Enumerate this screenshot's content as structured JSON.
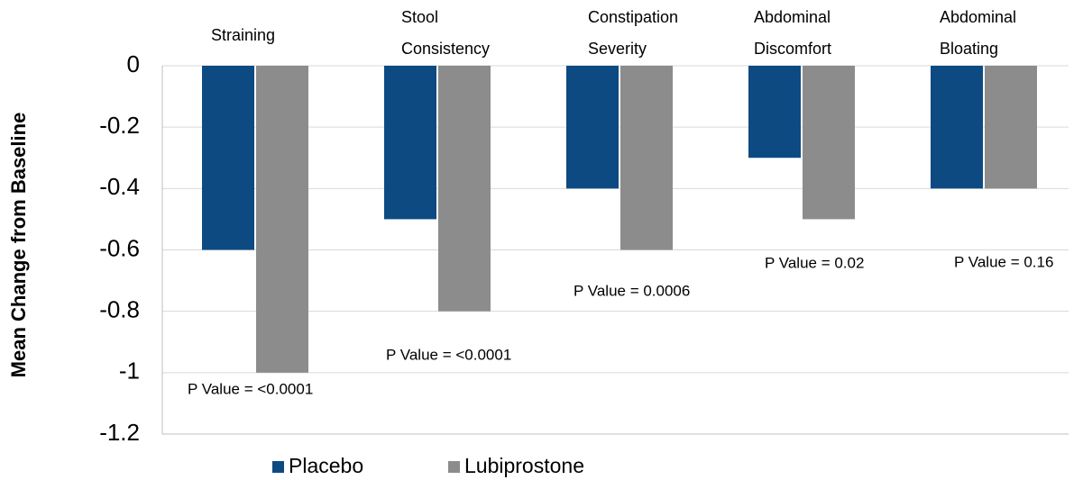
{
  "chart_data": {
    "type": "bar",
    "y_label": "Mean Change from Baseline",
    "categories": [
      [
        "Straining"
      ],
      [
        "Stool",
        "Consistency"
      ],
      [
        "Constipation",
        "Severity"
      ],
      [
        "Abdominal",
        "Discomfort"
      ],
      [
        "Abdominal",
        "Bloating"
      ]
    ],
    "series": [
      {
        "name": "Placebo",
        "color": "#0d4a82",
        "values": [
          -0.6,
          -0.5,
          -0.4,
          -0.3,
          -0.4
        ]
      },
      {
        "name": "Lubiprostone",
        "color": "#8c8c8c",
        "values": [
          -1,
          -0.8,
          -0.6,
          -0.5,
          -0.4
        ]
      }
    ],
    "annotations": [
      "P Value = <0.0001",
      "P Value = <0.0001",
      "P Value = 0.0006",
      "P Value = 0.02",
      "P Value = 0.16"
    ],
    "ylim": [
      -1.2,
      0
    ],
    "yticks": [
      0,
      -0.2,
      -0.4,
      -0.6,
      -0.8,
      -1,
      -1.2
    ],
    "grid": true
  }
}
